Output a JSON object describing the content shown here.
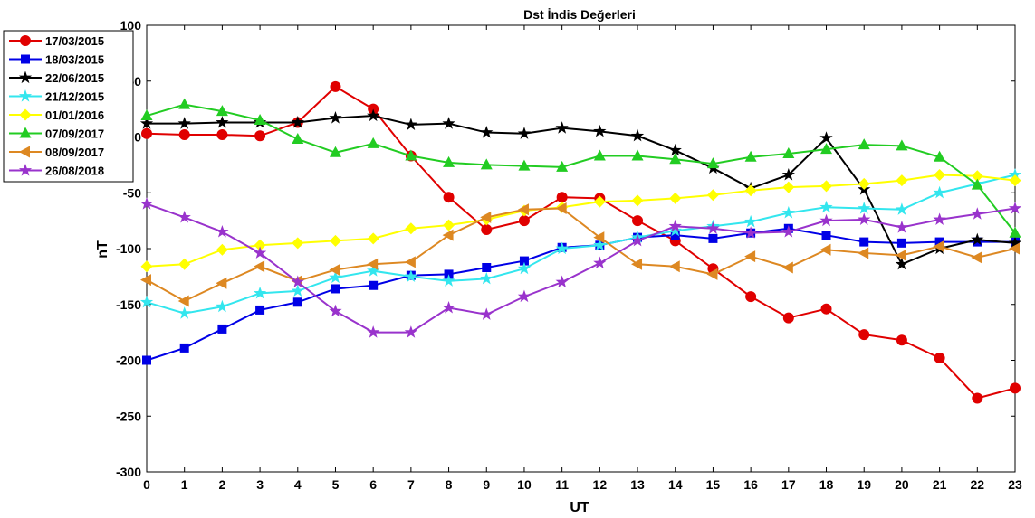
{
  "chart_data": {
    "type": "line",
    "title": "Dst İndis Değerleri",
    "xlabel": "UT",
    "ylabel": "nT",
    "x": [
      0,
      1,
      2,
      3,
      4,
      5,
      6,
      7,
      8,
      9,
      10,
      11,
      12,
      13,
      14,
      15,
      16,
      17,
      18,
      19,
      20,
      21,
      22,
      23
    ],
    "x_ticks": [
      "0",
      "1",
      "2",
      "3",
      "4",
      "5",
      "6",
      "7",
      "8",
      "9",
      "10",
      "11",
      "12",
      "13",
      "14",
      "15",
      "16",
      "17",
      "18",
      "19",
      "20",
      "21",
      "22",
      "23"
    ],
    "xlim": [
      0,
      23
    ],
    "ylim": [
      -300,
      100
    ],
    "y_ticks": [
      "100",
      "50",
      "0",
      "-50",
      "-100",
      "-150",
      "-200",
      "-250",
      "-300"
    ],
    "grid": false,
    "legend_position": "top-left-outside",
    "series": [
      {
        "name": "17/03/2015",
        "color": "#e00000",
        "marker": "circle",
        "values": [
          3,
          2,
          2,
          1,
          13,
          45,
          25,
          -17,
          -54,
          -83,
          -75,
          -54,
          -55,
          -75,
          -93,
          -118,
          -143,
          -162,
          -154,
          -177,
          -182,
          -198,
          -234,
          -225
        ]
      },
      {
        "name": "18/03/2015",
        "color": "#0000e6",
        "marker": "square",
        "values": [
          -200,
          -189,
          -172,
          -155,
          -148,
          -136,
          -133,
          -124,
          -123,
          -117,
          -111,
          -99,
          -97,
          -90,
          -88,
          -91,
          -86,
          -82,
          -88,
          -94,
          -95,
          -94,
          -94,
          -94
        ]
      },
      {
        "name": "22/06/2015",
        "color": "#000000",
        "marker": "star",
        "values": [
          12,
          12,
          13,
          13,
          13,
          17,
          19,
          11,
          12,
          4,
          3,
          8,
          5,
          1,
          -12,
          -28,
          -46,
          -34,
          -1,
          -47,
          -114,
          -100,
          -92,
          -95
        ]
      },
      {
        "name": "21/12/2015",
        "color": "#33e6ee",
        "marker": "star",
        "values": [
          -148,
          -158,
          -152,
          -140,
          -138,
          -126,
          -120,
          -125,
          -129,
          -127,
          -118,
          -100,
          -97,
          -90,
          -84,
          -80,
          -76,
          -68,
          -63,
          -64,
          -65,
          -50,
          -42,
          -34
        ]
      },
      {
        "name": "01/01/2016",
        "color": "#ffff00",
        "marker": "diamond",
        "values": [
          -116,
          -114,
          -101,
          -97,
          -95,
          -93,
          -91,
          -82,
          -79,
          -74,
          -66,
          -63,
          -58,
          -57,
          -55,
          -52,
          -48,
          -45,
          -44,
          -42,
          -39,
          -34,
          -35,
          -39
        ]
      },
      {
        "name": "07/09/2017",
        "color": "#22cc22",
        "marker": "triangle-up",
        "values": [
          19,
          29,
          23,
          15,
          -2,
          -14,
          -6,
          -17,
          -23,
          -25,
          -26,
          -27,
          -17,
          -17,
          -20,
          -24,
          -18,
          -15,
          -11,
          -7,
          -8,
          -18,
          -43,
          -86
        ]
      },
      {
        "name": "08/09/2017",
        "color": "#dd8822",
        "marker": "triangle-left",
        "values": [
          -128,
          -147,
          -131,
          -116,
          -129,
          -119,
          -114,
          -112,
          -88,
          -72,
          -65,
          -64,
          -90,
          -114,
          -116,
          -123,
          -107,
          -117,
          -101,
          -104,
          -106,
          -98,
          -108,
          -100
        ]
      },
      {
        "name": "26/08/2018",
        "color": "#9933cc",
        "marker": "star",
        "values": [
          -60,
          -72,
          -85,
          -104,
          -130,
          -156,
          -175,
          -175,
          -153,
          -159,
          -143,
          -130,
          -113,
          -93,
          -80,
          -82,
          -86,
          -85,
          -75,
          -74,
          -81,
          -74,
          -69,
          -64
        ]
      }
    ]
  }
}
